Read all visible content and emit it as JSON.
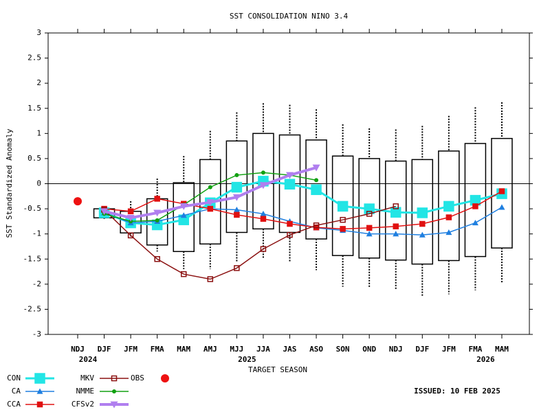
{
  "chart_data": {
    "type": "box-line",
    "title": "SST CONSOLIDATION NINO 3.4",
    "y_label": "SST Standardized Anomaly",
    "x_label": "TARGET SEASON",
    "annotation": "ISSUED: 10 FEB 2025",
    "categories": [
      "NDJ",
      "DJF",
      "JFM",
      "FMA",
      "MAM",
      "AMJ",
      "MJJ",
      "JJA",
      "JAS",
      "ASO",
      "SON",
      "OND",
      "NDJ",
      "DJF",
      "JFM",
      "FMA",
      "MAM"
    ],
    "year_labels": [
      "2024",
      null,
      null,
      null,
      null,
      null,
      "2025",
      null,
      null,
      null,
      null,
      null,
      null,
      null,
      null,
      "2026",
      null
    ],
    "ylim": [
      -3,
      3
    ],
    "yticks": [
      -3,
      -2.5,
      -2,
      -1.5,
      -1,
      -0.5,
      0,
      0.5,
      1,
      1.5,
      2,
      2.5,
      3
    ],
    "boxes": {
      "upper_whisker": [
        null,
        -0.48,
        -0.35,
        0.1,
        0.55,
        1.05,
        1.42,
        1.6,
        1.57,
        1.48,
        1.18,
        1.1,
        1.08,
        1.15,
        1.35,
        1.52,
        1.62
      ],
      "box_top": [
        null,
        -0.5,
        -0.55,
        -0.3,
        0.02,
        0.48,
        0.85,
        1.0,
        0.97,
        0.87,
        0.55,
        0.5,
        0.45,
        0.48,
        0.65,
        0.8,
        0.9
      ],
      "box_bottom": [
        null,
        -0.68,
        -0.98,
        -1.22,
        -1.35,
        -1.2,
        -0.97,
        -0.9,
        -0.97,
        -1.1,
        -1.43,
        -1.48,
        -1.52,
        -1.6,
        -1.53,
        -1.45,
        -1.28
      ],
      "lower_whisker": [
        null,
        -0.7,
        -1.05,
        -1.35,
        -1.7,
        -1.7,
        -1.55,
        -1.5,
        -1.57,
        -1.72,
        -2.05,
        -2.08,
        -2.12,
        -2.25,
        -2.2,
        -2.12,
        -1.97
      ]
    },
    "series": [
      {
        "name": "CON",
        "color": "#22e5e5",
        "marker": "square",
        "width": 3,
        "values": [
          null,
          -0.58,
          -0.78,
          -0.82,
          -0.72,
          -0.38,
          -0.07,
          0.05,
          -0.01,
          -0.12,
          -0.45,
          -0.5,
          -0.57,
          -0.58,
          -0.45,
          -0.33,
          -0.2
        ]
      },
      {
        "name": "CA",
        "color": "#1f7fe0",
        "marker": "triangle",
        "width": 1.5,
        "values": [
          null,
          -0.58,
          -0.78,
          -0.75,
          -0.63,
          -0.5,
          -0.52,
          -0.6,
          -0.75,
          -0.88,
          -0.93,
          -1.0,
          -1.0,
          -1.02,
          -0.97,
          -0.78,
          -0.47
        ]
      },
      {
        "name": "CCA",
        "color": "#e01010",
        "marker": "square",
        "width": 1.5,
        "values": [
          null,
          -0.5,
          -0.55,
          -0.3,
          -0.4,
          -0.5,
          -0.62,
          -0.7,
          -0.8,
          -0.87,
          -0.9,
          -0.88,
          -0.85,
          -0.8,
          -0.67,
          -0.45,
          -0.15
        ]
      },
      {
        "name": "MKV",
        "color": "#8b1010",
        "marker": "open-square",
        "width": 1.5,
        "values": [
          null,
          -0.52,
          -1.03,
          -1.5,
          -1.8,
          -1.9,
          -1.68,
          -1.3,
          -1.02,
          -0.83,
          -0.72,
          -0.6,
          -0.45,
          null,
          null,
          null,
          null
        ]
      },
      {
        "name": "NMME",
        "color": "#10a010",
        "marker": "circle",
        "width": 1.5,
        "values": [
          null,
          -0.6,
          -0.75,
          -0.73,
          -0.42,
          -0.07,
          0.17,
          0.22,
          0.17,
          0.07,
          null,
          null,
          null,
          null,
          null,
          null,
          null
        ]
      },
      {
        "name": "CFSv2",
        "color": "#b07fef",
        "marker": "triangle-down",
        "width": 4,
        "values": [
          null,
          -0.55,
          -0.68,
          -0.58,
          -0.45,
          -0.37,
          -0.27,
          -0.03,
          0.17,
          0.32,
          null,
          null,
          null,
          null,
          null,
          null,
          null
        ]
      },
      {
        "name": "OBS",
        "color": "#ee1111",
        "marker": "dot",
        "width": 0,
        "values": [
          -0.35,
          null,
          null,
          null,
          null,
          null,
          null,
          null,
          null,
          null,
          null,
          null,
          null,
          null,
          null,
          null,
          null
        ]
      }
    ]
  }
}
